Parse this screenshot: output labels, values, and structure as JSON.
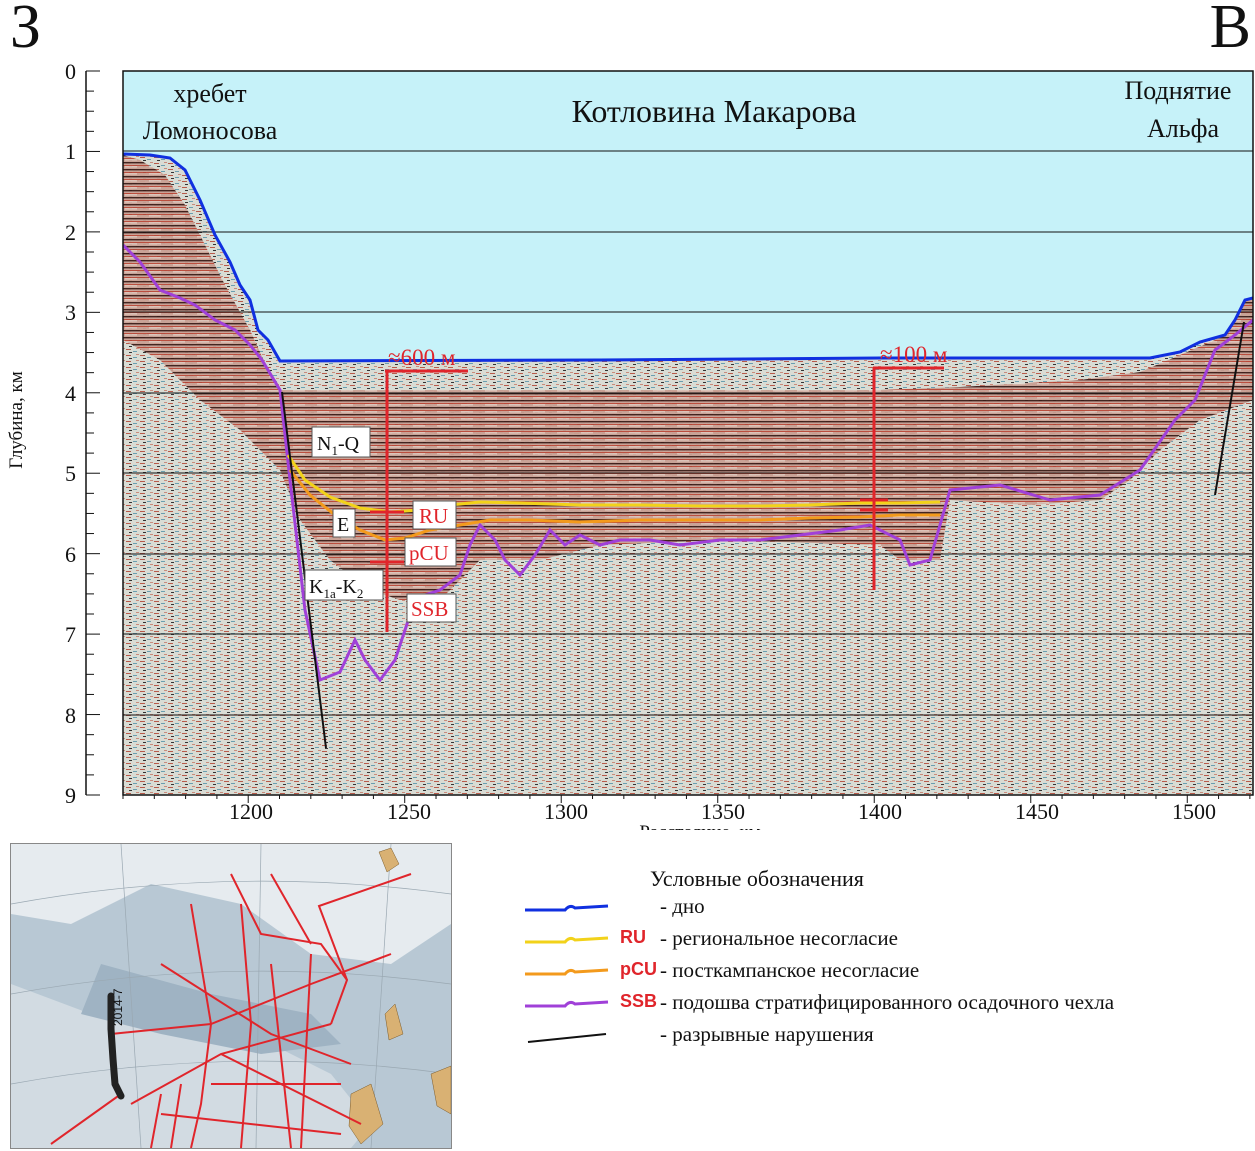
{
  "directions": {
    "west": "З",
    "east": "В"
  },
  "regions": {
    "left_line1": "хребет",
    "left_line2": "Ломоносова",
    "center": "Котловина Макарова",
    "right_line1": "Поднятие",
    "right_line2": "Альфа"
  },
  "axes": {
    "ylabel": "Глубина, км",
    "xlabel": "Расстояние, км",
    "y_ticks": [
      "0",
      "1",
      "2",
      "3",
      "4",
      "5",
      "6",
      "7",
      "8",
      "9"
    ],
    "x_ticks": [
      "1200",
      "1250",
      "1300",
      "1350",
      "1400",
      "1450",
      "1500"
    ],
    "x_range": [
      1160,
      1521
    ],
    "y_range": [
      0,
      9
    ]
  },
  "annotations": {
    "thickness_left": "≈600 м",
    "thickness_right": "≈100 м",
    "unit_n1q_base": "N",
    "unit_n1q_sub": "1",
    "unit_n1q_rest": "-Q",
    "unit_e": "E",
    "unit_k_base": "K",
    "unit_k_sub1": "1a",
    "unit_k_mid": "-K",
    "unit_k_sub2": "2",
    "label_ru": "RU",
    "label_pcu": "pCU",
    "label_ssb": "SSB"
  },
  "map": {
    "profile_label": "2014-7"
  },
  "legend": {
    "title": "Условные обозначения",
    "items": [
      {
        "code": "",
        "text": "- дно",
        "color": "#1030e0"
      },
      {
        "code": "RU",
        "text": "- региональное несогласие",
        "color": "#f2d21a"
      },
      {
        "code": "pCU",
        "text": "- посткампанское несогласие",
        "color": "#f39a1c"
      },
      {
        "code": "SSB",
        "text": "- подошва стратифицированного осадочного чехла",
        "color": "#a040d8"
      },
      {
        "code": "",
        "text": "- разрывные нарушения",
        "color": "#111111"
      }
    ]
  },
  "colors": {
    "water": "#c6f2f9",
    "seafloor": "#1030e0",
    "ru": "#f2d21a",
    "pcu": "#f39a1c",
    "ssb": "#a040d8",
    "annotation_red": "#e0252b"
  }
}
